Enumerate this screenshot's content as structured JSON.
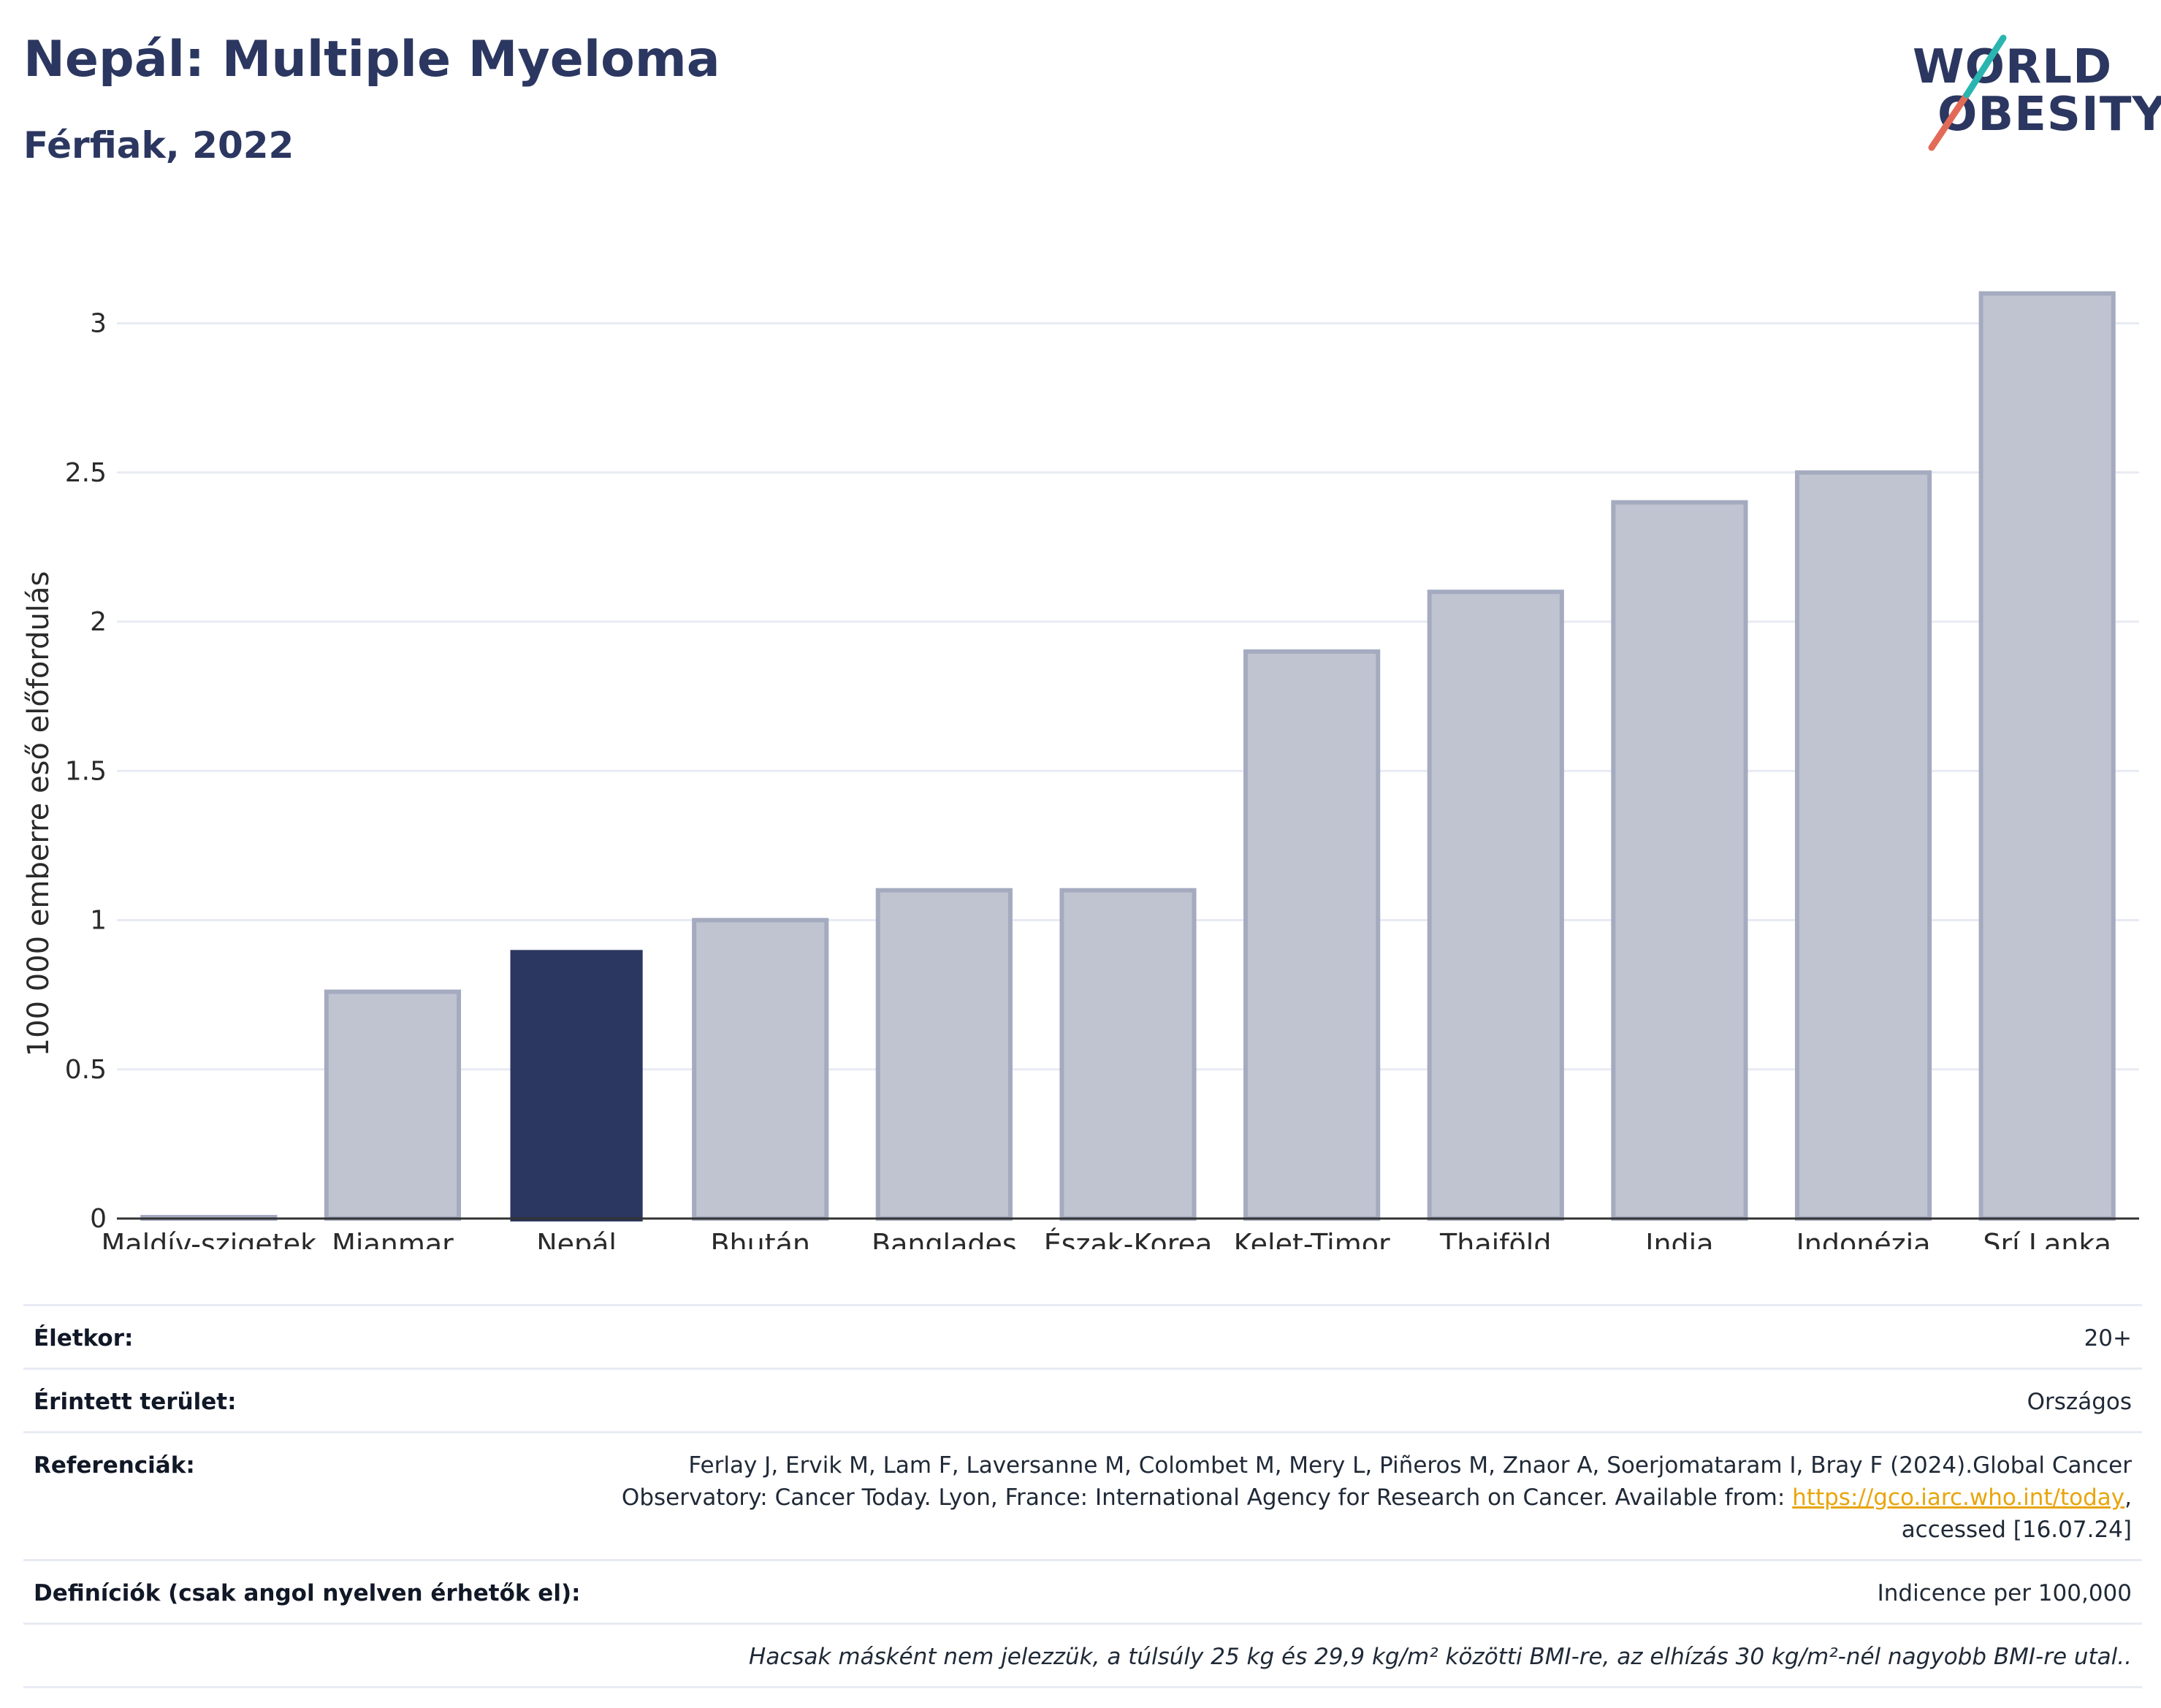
{
  "header": {
    "title": "Nepál: Multiple Myeloma",
    "subtitle": "Férfiak, 2022",
    "logo_line1": "WORLD",
    "logo_line2": "OBESITY"
  },
  "colors": {
    "highlight": "#2b3760",
    "bar_fill": "#c0c4d1",
    "bar_stroke": "#a5abbf",
    "grid": "#e8ebf3",
    "logo_teal": "#2bb5b0",
    "logo_coral": "#e26b57"
  },
  "chart_data": {
    "type": "bar",
    "title": "Nepál: Multiple Myeloma",
    "subtitle": "Férfiak, 2022",
    "xlabel": "",
    "ylabel": "100 000 emberre eső előfordulás",
    "categories": [
      "Maldív-szigetek",
      "Mianmar",
      "Nepál",
      "Bhután",
      "Banglades",
      "Észak-Korea",
      "Kelet-Timor",
      "Thaiföld",
      "India",
      "Indonézia",
      "Srí Lanka"
    ],
    "values": [
      0.0,
      0.76,
      0.9,
      1.0,
      1.1,
      1.1,
      1.9,
      2.1,
      2.4,
      2.5,
      3.1
    ],
    "highlight": "Nepál",
    "yticks": [
      0,
      0.5,
      1,
      1.5,
      2,
      2.5,
      3
    ],
    "ytick_labels": [
      "0",
      "0.5",
      "1",
      "1.5",
      "2",
      "2.5",
      "3"
    ],
    "ylim": [
      0,
      3.3
    ],
    "grid": true,
    "legend": "none"
  },
  "meta": {
    "age_label": "Életkor:",
    "age_value": "20+",
    "area_label": "Érintett terület:",
    "area_value": "Országos",
    "ref_label": "Referenciák:",
    "ref_line1": "Ferlay J, Ervik M, Lam F, Laversanne M, Colombet M, Mery L, Piñeros M, Znaor A, Soerjomataram I, Bray F (2024).Global Cancer",
    "ref_line2": "Observatory: Cancer Today. Lyon, France: International Agency for Research on Cancer. Available from: ",
    "ref_link": "https://gco.iarc.who.int/today",
    "ref_line2_end": ",",
    "ref_line3": "accessed [16.07.24]",
    "def_label": "Definíciók (csak angol nyelven érhetők el):",
    "def_value": "Indicence per 100,000",
    "note": "Hacsak másként nem jelezzük, a túlsúly 25 kg és 29,9 kg/m² közötti BMI-re, az elhízás 30 kg/m²-nél nagyobb BMI-re utal.."
  }
}
